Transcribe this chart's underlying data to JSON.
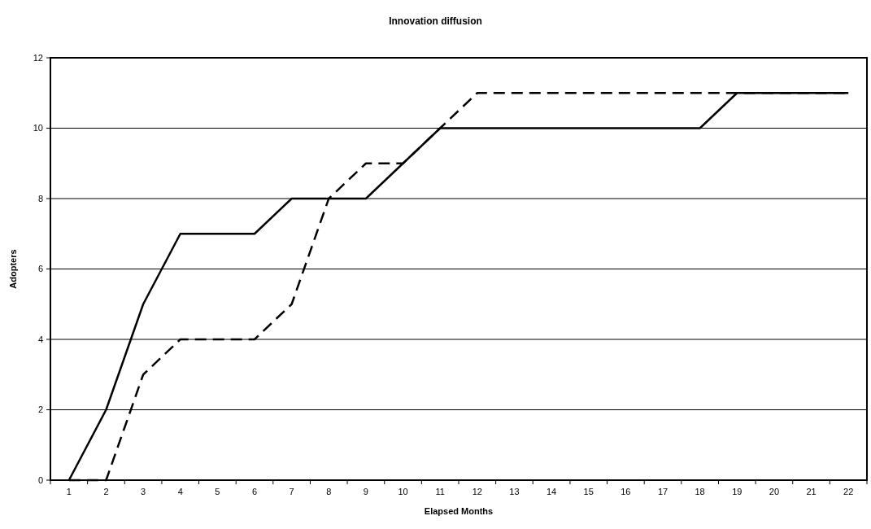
{
  "chart_data": {
    "type": "line",
    "title": "Innovation diffusion",
    "xlabel": "Elapsed Months",
    "ylabel": "Adopters",
    "categories": [
      "1",
      "2",
      "3",
      "4",
      "5",
      "6",
      "7",
      "8",
      "9",
      "10",
      "11",
      "12",
      "13",
      "14",
      "15",
      "16",
      "17",
      "18",
      "19",
      "20",
      "21",
      "22"
    ],
    "series": [
      {
        "color": "#000000",
        "line_style": "solid",
        "values": [
          0,
          2,
          5,
          7,
          7,
          7,
          8,
          8,
          8,
          9,
          10,
          10,
          10,
          10,
          10,
          10,
          10,
          10,
          11,
          11,
          11,
          11
        ]
      },
      {
        "color": "#000000",
        "line_style": "dashed",
        "values": [
          0,
          0,
          3,
          4,
          4,
          4,
          5,
          8,
          9,
          9,
          10,
          11,
          11,
          11,
          11,
          11,
          11,
          11,
          11,
          11,
          11,
          11
        ]
      }
    ],
    "ylim": [
      0,
      12
    ],
    "yticks": [
      0,
      2,
      4,
      6,
      8,
      10,
      12
    ],
    "grid": "y",
    "marker": "none"
  }
}
